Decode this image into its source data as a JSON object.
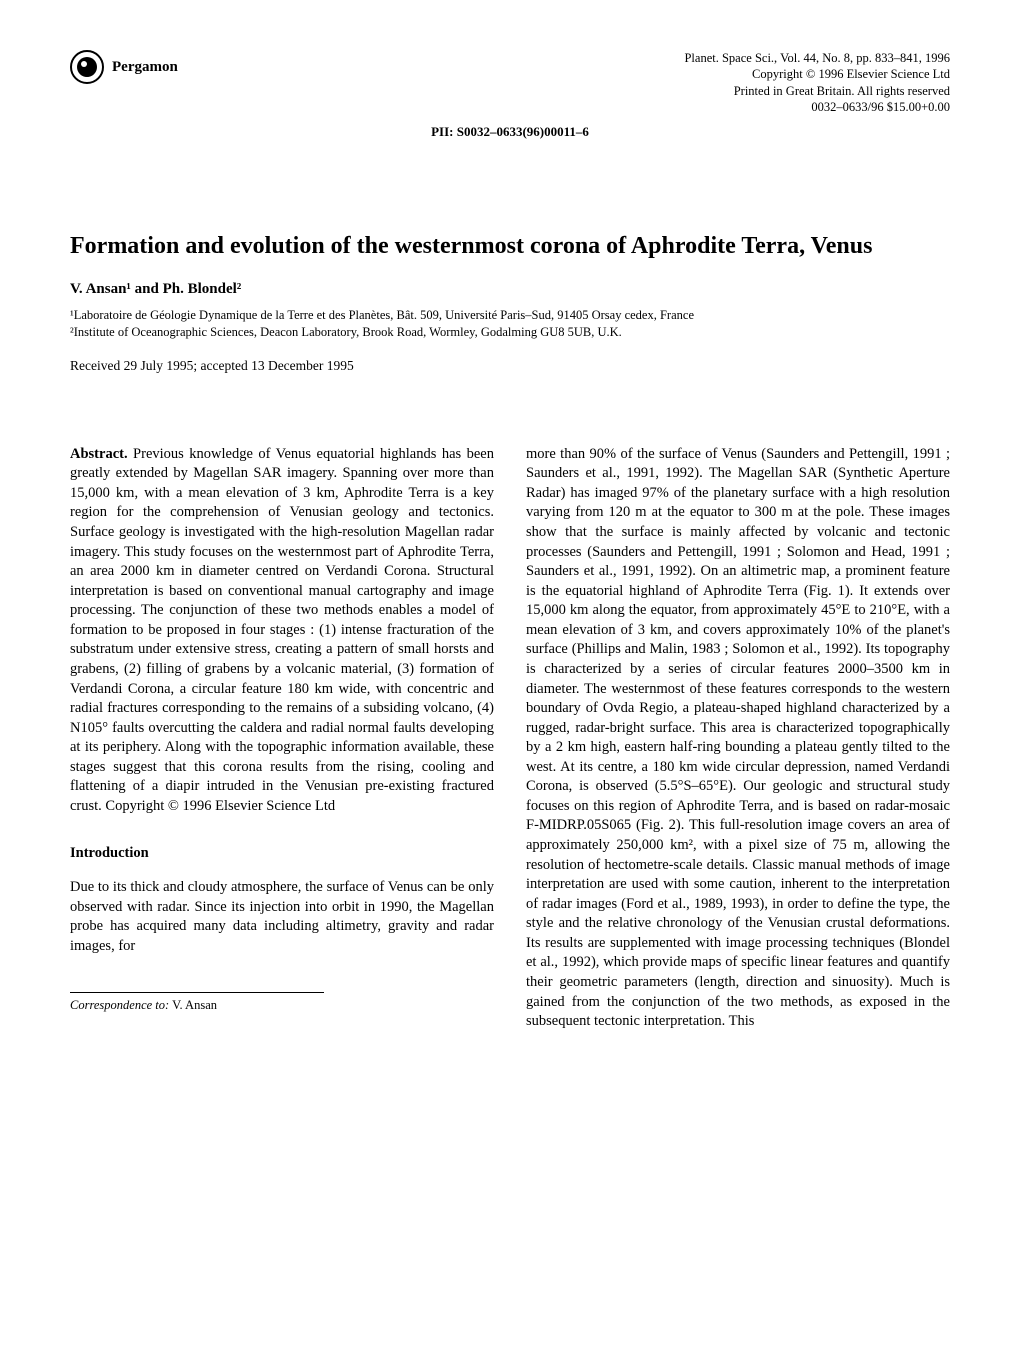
{
  "publisher": "Pergamon",
  "journal_meta": {
    "line1": "Planet. Space Sci., Vol. 44, No. 8, pp. 833–841, 1996",
    "line2": "Copyright © 1996 Elsevier Science Ltd",
    "line3": "Printed in Great Britain. All rights reserved",
    "line4": "0032–0633/96   $15.00+0.00"
  },
  "pii": "PII: S0032–0633(96)00011–6",
  "title": "Formation and evolution of the westernmost corona of Aphrodite Terra, Venus",
  "authors": "V. Ansan¹ and Ph. Blondel²",
  "affiliations": {
    "a1": "¹Laboratoire de Géologie Dynamique de la Terre et des Planètes, Bât. 509, Université Paris–Sud, 91405 Orsay cedex, France",
    "a2": "²Institute of Oceanographic Sciences, Deacon Laboratory, Brook Road, Wormley, Godalming GU8 5UB, U.K."
  },
  "received": "Received 29 July 1995; accepted 13 December 1995",
  "abstract_label": "Abstract.",
  "abstract_text": " Previous knowledge of Venus equatorial highlands has been greatly extended by Magellan SAR imagery. Spanning over more than 15,000 km, with a mean elevation of 3 km, Aphrodite Terra is a key region for the comprehension of Venusian geology and tectonics. Surface geology is investigated with the high-resolution Magellan radar imagery. This study focuses on the westernmost part of Aphrodite Terra, an area 2000 km in diameter centred on Verdandi Corona. Structural interpretation is based on conventional manual cartography and image processing. The conjunction of these two methods enables a model of formation to be proposed in four stages : (1) intense fracturation of the substratum under extensive stress, creating a pattern of small horsts and grabens, (2) filling of grabens by a volcanic material, (3) formation of Verdandi Corona, a circular feature 180 km wide, with concentric and radial fractures corresponding to the remains of a subsiding volcano, (4) N105° faults overcutting the caldera and radial normal faults developing at its periphery. Along with the topographic information available, these stages suggest that this corona results from the rising, cooling and flattening of a diapir intruded in the Venusian pre-existing fractured crust. Copyright © 1996 Elsevier Science Ltd",
  "intro_heading": "Introduction",
  "intro_p1": "Due to its thick and cloudy atmosphere, the surface of Venus can be only observed with radar. Since its injection into orbit in 1990, the Magellan probe has acquired many data including altimetry, gravity and radar images, for",
  "right_col_text": "more than 90% of the surface of Venus (Saunders and Pettengill, 1991 ; Saunders et al., 1991, 1992). The Magellan SAR (Synthetic Aperture Radar) has imaged 97% of the planetary surface with a high resolution varying from 120 m at the equator to 300 m at the pole. These images show that the surface is mainly affected by volcanic and tectonic processes (Saunders and Pettengill, 1991 ; Solomon and Head, 1991 ; Saunders et al., 1991, 1992). On an altimetric map, a prominent feature is the equatorial highland of Aphrodite Terra (Fig. 1). It extends over 15,000 km along the equator, from approximately 45°E to 210°E, with a mean elevation of 3 km, and covers approximately 10% of the planet's surface (Phillips and Malin, 1983 ; Solomon et al., 1992). Its topography is characterized by a series of circular features 2000–3500 km in diameter. The westernmost of these features corresponds to the western boundary of Ovda Regio, a plateau-shaped highland characterized by a rugged, radar-bright surface. This area is characterized topographically by a 2 km high, eastern half-ring bounding a plateau gently tilted to the west. At its centre, a 180 km wide circular depression, named Verdandi Corona, is observed (5.5°S–65°E). Our geologic and structural study focuses on this region of Aphrodite Terra, and is based on radar-mosaic F-MIDRP.05S065 (Fig. 2). This full-resolution image covers an area of approximately 250,000 km², with a pixel size of 75 m, allowing the resolution of hectometre-scale details. Classic manual methods of image interpretation are used with some caution, inherent to the interpretation of radar images (Ford et al., 1989, 1993), in order to define the type, the style and the relative chronology of the Venusian crustal deformations. Its results are supplemented with image processing techniques (Blondel et al., 1992), which provide maps of specific linear features and quantify their geometric parameters (length, direction and sinuosity). Much is gained from the conjunction of the two methods, as exposed in the subsequent tectonic interpretation. This",
  "correspondence_label": "Correspondence to:",
  "correspondence_name": " V. Ansan"
}
